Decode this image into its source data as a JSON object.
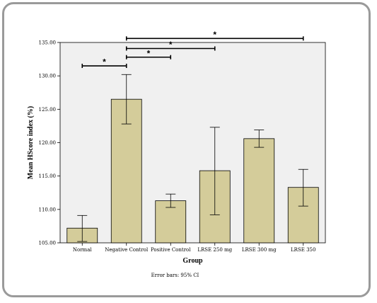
{
  "chart_data": {
    "type": "bar",
    "categories": [
      "Normal",
      "Negative Control",
      "Positive Control",
      "LRSE 250 mg",
      "LRSE 300 mg",
      "LRSE 350"
    ],
    "values": [
      107.2,
      126.5,
      111.3,
      115.8,
      120.6,
      113.3
    ],
    "ci_low": [
      105.2,
      122.8,
      110.3,
      109.2,
      119.3,
      110.5
    ],
    "ci_high": [
      109.1,
      130.2,
      112.3,
      122.3,
      121.9,
      116.0
    ],
    "xlabel": "Group",
    "ylabel": "Mean HScore index (%)",
    "ylim": [
      105.0,
      135.0
    ],
    "yticks": [
      "105.00",
      "110.00",
      "115.00",
      "120.00",
      "125.00",
      "130.00",
      "135.00"
    ],
    "note": "Error bars: 95% CI",
    "significance": [
      {
        "from": "Normal",
        "to": "Negative Control",
        "y": 131.5,
        "label": "*"
      },
      {
        "from": "Negative Control",
        "to": "Positive Control",
        "y": 132.8,
        "label": "*"
      },
      {
        "from": "Negative Control",
        "to": "LRSE 250 mg",
        "y": 134.1,
        "label": "*"
      },
      {
        "from": "Negative Control",
        "to": "LRSE 350",
        "y": 135.6,
        "label": "*"
      }
    ],
    "colors": {
      "bar": "#d4cc9a",
      "plot_bg": "#f0f0f0",
      "stroke": "#000000"
    }
  }
}
